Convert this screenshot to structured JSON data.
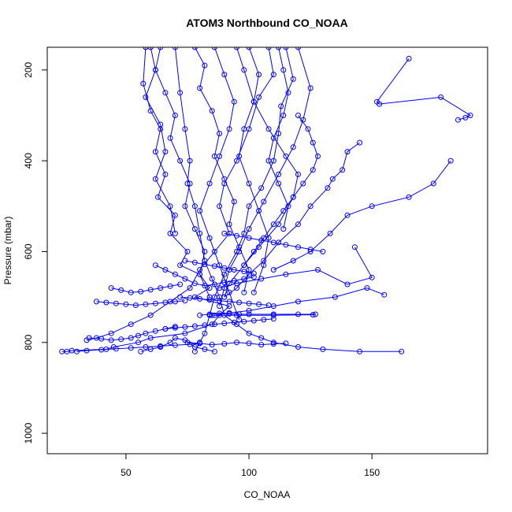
{
  "chart_data": {
    "type": "line",
    "title": "ATOM3 Northbound CO_NOAA",
    "xlabel": "CO_NOAA",
    "ylabel": "Pressure (mbar)",
    "xlim": [
      18,
      197
    ],
    "ylim": [
      1045,
      150
    ],
    "y_reversed": true,
    "xticks": [
      50,
      100,
      150
    ],
    "yticks": [
      200,
      400,
      600,
      800,
      1000
    ],
    "grid": false,
    "legend": "none",
    "marker": "open-circle",
    "colors": {
      "series": "#0000ff",
      "axis": "#000000"
    },
    "series": [
      {
        "x": [
          58,
          57,
          60,
          64,
          62,
          66,
          63,
          70,
          68,
          75,
          72,
          80,
          84,
          78,
          92,
          88,
          85,
          74,
          60,
          55,
          45,
          42,
          28,
          26,
          24
        ],
        "y": [
          150,
          230,
          290,
          330,
          380,
          430,
          480,
          520,
          560,
          600,
          630,
          650,
          680,
          700,
          720,
          740,
          760,
          780,
          790,
          800,
          810,
          815,
          818,
          820,
          820
        ]
      },
      {
        "x": [
          108,
          110,
          104,
          100,
          95,
          90,
          88,
          92,
          86,
          80,
          76,
          68,
          60,
          52,
          44,
          38,
          34
        ],
        "y": [
          150,
          210,
          260,
          330,
          400,
          450,
          500,
          560,
          600,
          640,
          680,
          710,
          740,
          760,
          780,
          790,
          795
        ]
      },
      {
        "x": [
          115,
          118,
          113,
          112,
          110,
          105,
          100,
          98,
          95,
          90,
          86,
          84,
          82,
          80,
          78
        ],
        "y": [
          150,
          220,
          280,
          340,
          400,
          460,
          500,
          560,
          600,
          650,
          700,
          740,
          780,
          800,
          820
        ]
      },
      {
        "x": [
          120,
          125,
          122,
          118,
          112,
          106,
          100,
          96,
          92,
          90,
          88
        ],
        "y": [
          150,
          240,
          310,
          370,
          430,
          490,
          550,
          600,
          640,
          680,
          720
        ]
      },
      {
        "x": [
          70,
          72,
          74,
          76,
          75,
          78,
          80,
          82,
          85,
          88,
          90,
          95,
          100,
          105,
          110,
          120,
          130,
          145,
          162
        ],
        "y": [
          150,
          250,
          330,
          400,
          450,
          500,
          560,
          620,
          660,
          700,
          740,
          760,
          780,
          790,
          800,
          810,
          815,
          820,
          820
        ]
      },
      {
        "x": [
          95,
          98,
          102,
          108,
          115,
          120,
          118,
          112,
          104,
          98,
          92,
          90
        ],
        "y": [
          150,
          200,
          270,
          330,
          390,
          430,
          480,
          540,
          590,
          630,
          670,
          700
        ]
      },
      {
        "x": [
          165,
          152,
          153,
          178,
          190,
          188,
          185
        ],
        "y": [
          175,
          270,
          275,
          260,
          300,
          305,
          310
        ]
      },
      {
        "x": [
          182,
          175,
          165,
          150,
          140,
          133,
          125,
          118,
          110
        ],
        "y": [
          400,
          450,
          480,
          500,
          520,
          560,
          600,
          620,
          640
        ]
      },
      {
        "x": [
          145,
          140,
          138,
          134,
          132,
          125,
          120,
          112,
          106,
          100,
          95,
          90
        ],
        "y": [
          360,
          380,
          420,
          440,
          460,
          500,
          540,
          580,
          620,
          650,
          680,
          700
        ]
      },
      {
        "x": [
          143,
          150,
          140,
          128,
          115,
          105,
          95,
          88
        ],
        "y": [
          590,
          657,
          672,
          640,
          650,
          660,
          670,
          680
        ]
      },
      {
        "x": [
          155,
          148,
          135,
          120,
          110,
          100,
          92,
          86
        ],
        "y": [
          695,
          680,
          700,
          710,
          720,
          730,
          735,
          740
        ]
      },
      {
        "x": [
          80,
          84,
          88,
          92,
          96,
          100,
          110,
          120,
          127,
          126,
          110,
          95,
          85
        ],
        "y": [
          740,
          738,
          736,
          737,
          738,
          738,
          738,
          738,
          738,
          739,
          740,
          740,
          740
        ]
      },
      {
        "x": [
          75,
          80,
          85,
          90,
          95,
          100,
          105,
          110,
          115
        ],
        "y": [
          800,
          802,
          805,
          803,
          800,
          802,
          805,
          803,
          802
        ]
      },
      {
        "x": [
          56,
          60,
          64,
          68,
          70,
          74,
          78,
          82,
          86
        ],
        "y": [
          820,
          815,
          810,
          800,
          790,
          795,
          810,
          815,
          820
        ]
      },
      {
        "x": [
          35,
          40,
          44,
          48,
          52,
          55,
          58,
          62,
          66,
          70
        ],
        "y": [
          790,
          792,
          795,
          793,
          790,
          785,
          780,
          775,
          770,
          765
        ]
      },
      {
        "x": [
          38,
          42,
          46,
          50,
          54,
          58,
          62,
          66,
          70,
          74
        ],
        "y": [
          710,
          712,
          714,
          716,
          718,
          716,
          714,
          712,
          710,
          708
        ]
      },
      {
        "x": [
          44,
          48,
          52,
          56,
          60,
          64,
          68,
          72
        ],
        "y": [
          680,
          685,
          690,
          688,
          684,
          680,
          676,
          672
        ]
      },
      {
        "x": [
          62,
          66,
          70,
          74,
          78,
          82,
          86,
          90,
          94,
          98,
          102
        ],
        "y": [
          630,
          640,
          650,
          660,
          670,
          675,
          672,
          668,
          664,
          660,
          656
        ]
      },
      {
        "x": [
          64,
          62,
          66,
          70,
          68,
          72,
          76,
          74,
          78,
          82,
          80,
          84
        ],
        "y": [
          150,
          200,
          250,
          300,
          350,
          400,
          450,
          500,
          550,
          600,
          650,
          700
        ]
      },
      {
        "x": [
          78,
          82,
          80,
          85,
          88,
          86,
          90,
          94,
          92,
          96,
          100,
          98
        ],
        "y": [
          150,
          190,
          240,
          290,
          340,
          390,
          440,
          490,
          540,
          590,
          640,
          690
        ]
      },
      {
        "x": [
          100,
          104,
          102,
          98,
          96,
          100,
          104,
          108,
          106,
          102
        ],
        "y": [
          150,
          210,
          270,
          330,
          390,
          450,
          510,
          570,
          630,
          690
        ]
      },
      {
        "x": [
          112,
          114,
          116,
          114,
          110,
          108,
          112,
          116,
          114
        ],
        "y": [
          150,
          200,
          250,
          300,
          350,
          400,
          450,
          500,
          550
        ]
      },
      {
        "x": [
          60,
          62,
          58,
          64,
          66,
          62,
          68,
          70
        ],
        "y": [
          150,
          200,
          260,
          320,
          380,
          440,
          500,
          560
        ]
      },
      {
        "x": [
          86,
          90,
          94,
          92,
          88,
          84,
          80,
          84,
          88,
          92,
          96
        ],
        "y": [
          150,
          210,
          270,
          330,
          390,
          450,
          510,
          570,
          630,
          690,
          750
        ]
      },
      {
        "x": [
          120,
          124,
          126,
          128,
          126,
          122,
          118,
          114,
          110,
          106,
          102,
          98
        ],
        "y": [
          300,
          330,
          360,
          390,
          420,
          450,
          480,
          510,
          540,
          570,
          600,
          630
        ]
      },
      {
        "x": [
          30,
          34,
          40,
          46,
          52,
          58,
          64,
          70,
          76,
          80
        ],
        "y": [
          820,
          818,
          816,
          814,
          812,
          810,
          808,
          806,
          804,
          802
        ]
      },
      {
        "x": [
          66,
          70,
          74,
          78,
          82,
          86,
          90,
          94,
          98,
          102,
          106,
          110
        ],
        "y": [
          770,
          768,
          766,
          764,
          762,
          760,
          758,
          756,
          754,
          752,
          750,
          748
        ]
      },
      {
        "x": [
          72,
          76,
          80,
          84,
          88,
          92,
          96,
          100,
          104,
          108
        ],
        "y": [
          700,
          702,
          704,
          706,
          708,
          710,
          712,
          714,
          716,
          718
        ]
      },
      {
        "x": [
          74,
          78,
          82,
          86,
          90,
          94,
          98,
          102
        ],
        "y": [
          620,
          624,
          628,
          632,
          636,
          640,
          644,
          648
        ]
      },
      {
        "x": [
          90,
          95,
          100,
          105,
          110,
          115,
          120,
          125,
          130
        ],
        "y": [
          560,
          565,
          570,
          575,
          580,
          585,
          590,
          595,
          600
        ]
      }
    ]
  }
}
